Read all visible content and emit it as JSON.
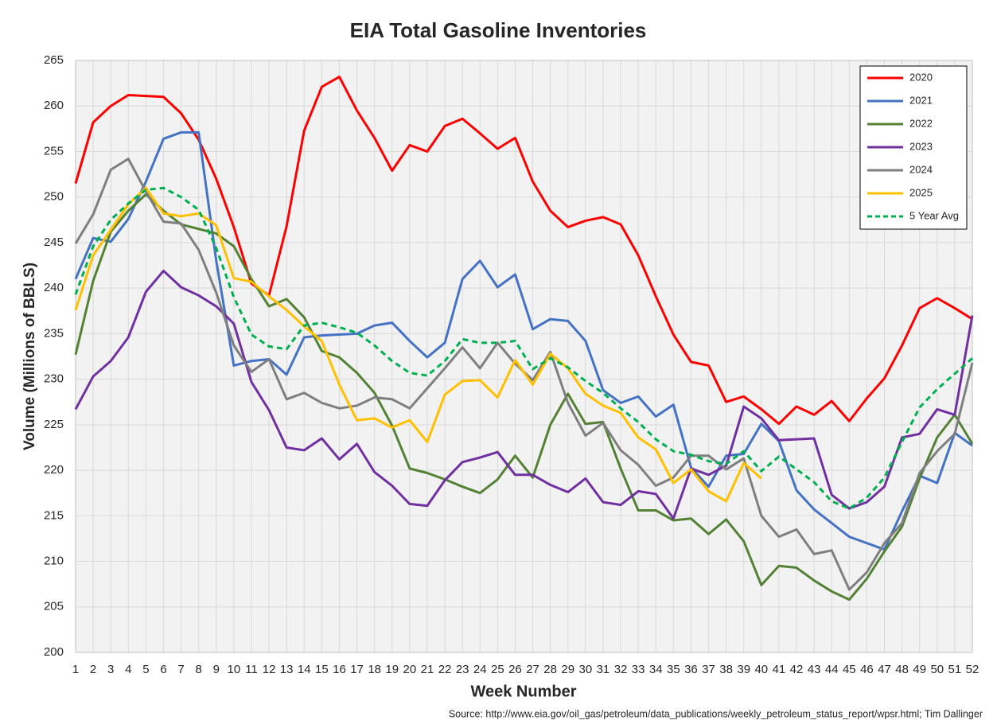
{
  "chart_data": {
    "type": "line",
    "title": "EIA Total Gasoline Inventories",
    "x_label": "Week Number",
    "y_label": "Volume (Millions of BBLS)",
    "source": "Source: http://www.eia.gov/oil_gas/petroleum/data_publications/weekly_petroleum_status_report/wpsr.html; Tim Dallinger",
    "x": [
      1,
      2,
      3,
      4,
      5,
      6,
      7,
      8,
      9,
      10,
      11,
      12,
      13,
      14,
      15,
      16,
      17,
      18,
      19,
      20,
      21,
      22,
      23,
      24,
      25,
      26,
      27,
      28,
      29,
      30,
      31,
      32,
      33,
      34,
      35,
      36,
      37,
      38,
      39,
      40,
      41,
      42,
      43,
      44,
      45,
      46,
      47,
      48,
      49,
      50,
      51,
      52
    ],
    "xlim": [
      1,
      52
    ],
    "xticks": [
      1,
      2,
      3,
      4,
      5,
      6,
      7,
      8,
      9,
      10,
      11,
      12,
      13,
      14,
      15,
      16,
      17,
      18,
      19,
      20,
      21,
      22,
      23,
      24,
      25,
      26,
      27,
      28,
      29,
      30,
      31,
      32,
      33,
      34,
      35,
      36,
      37,
      38,
      39,
      40,
      41,
      42,
      43,
      44,
      45,
      46,
      47,
      48,
      49,
      50,
      51,
      52
    ],
    "ylim": [
      200,
      265
    ],
    "yticks": [
      200,
      205,
      210,
      215,
      220,
      225,
      230,
      235,
      240,
      245,
      250,
      255,
      260,
      265
    ],
    "grid": true,
    "legend": "upper right",
    "series": [
      {
        "name": "2020",
        "color": "#ff0000",
        "dashed": false,
        "values": [
          251.5,
          258.2,
          260,
          261.2,
          261.1,
          261,
          259.2,
          256.3,
          252,
          246.7,
          240.5,
          239.2,
          246.8,
          257.3,
          262.1,
          263.2,
          259.5,
          256.5,
          252.9,
          255.7,
          255,
          257.8,
          258.6,
          257,
          255.3,
          256.5,
          251.7,
          248.5,
          246.7,
          247.4,
          247.8,
          247,
          243.6,
          239.1,
          234.9,
          231.9,
          231.5,
          227.5,
          228.1,
          226.7,
          225.1,
          227,
          226.1,
          227.6,
          225.4,
          227.9,
          230.1,
          233.7,
          237.8,
          238.9,
          237.8,
          236.6
        ]
      },
      {
        "name": "2021",
        "color": "#4472c4",
        "dashed": false,
        "values": [
          241,
          245.5,
          245.1,
          247.6,
          251.7,
          256.4,
          257.1,
          257.1,
          243,
          231.5,
          232,
          232.2,
          230.5,
          234.6,
          234.8,
          234.9,
          235,
          235.9,
          236.2,
          234.2,
          232.4,
          234,
          241,
          243,
          240.1,
          241.5,
          235.5,
          236.6,
          236.4,
          234.2,
          228.8,
          227.4,
          228.1,
          225.9,
          227.2,
          220.3,
          218.2,
          221.6,
          221.8,
          225.1,
          223.2,
          217.8,
          215.7,
          214.2,
          212.7,
          212,
          211.3,
          215.5,
          219.4,
          218.6,
          224.1,
          222.7
        ]
      },
      {
        "name": "2022",
        "color": "#548235",
        "dashed": false,
        "values": [
          232.7,
          240.8,
          246.2,
          248.5,
          250.3,
          248.5,
          247,
          246.5,
          246,
          244.6,
          241,
          238,
          238.8,
          236.8,
          233.1,
          232.4,
          230.7,
          228.5,
          224.9,
          220.2,
          219.7,
          219,
          218.2,
          217.5,
          219,
          221.6,
          219.2,
          225,
          228.4,
          225.1,
          225.3,
          220.2,
          215.6,
          215.6,
          214.5,
          214.7,
          213,
          214.6,
          212.2,
          207.4,
          209.5,
          209.3,
          207.9,
          206.7,
          205.8,
          208.1,
          211.1,
          213.8,
          219.1,
          223.6,
          226.1,
          222.9
        ]
      },
      {
        "name": "2023",
        "color": "#7030a0",
        "dashed": false,
        "values": [
          226.7,
          230.3,
          232,
          234.6,
          239.6,
          241.9,
          240.1,
          239.2,
          238,
          236.1,
          229.7,
          226.6,
          222.5,
          222.2,
          223.5,
          221.2,
          222.9,
          219.8,
          218.3,
          216.3,
          216.1,
          218.9,
          220.9,
          221.4,
          222,
          219.5,
          219.5,
          218.4,
          217.6,
          219.1,
          216.5,
          216.2,
          217.7,
          217.4,
          214.7,
          220.2,
          219.5,
          220.5,
          227,
          225.7,
          223.3,
          223.4,
          223.5,
          217.3,
          215.8,
          216.5,
          218.2,
          223.6,
          224,
          226.7,
          226.1,
          237
        ]
      },
      {
        "name": "2024",
        "color": "#7f7f7f",
        "dashed": false,
        "values": [
          244.9,
          248.1,
          253,
          254.2,
          250.6,
          247.3,
          247.1,
          244.2,
          239.5,
          233.7,
          230.8,
          232.2,
          227.8,
          228.5,
          227.4,
          226.8,
          227.1,
          228,
          227.8,
          226.8,
          229,
          231.2,
          233.5,
          231.2,
          234,
          231.7,
          229.9,
          233,
          227.4,
          223.8,
          225.2,
          222.2,
          220.6,
          218.3,
          219.2,
          221.6,
          221.6,
          220.1,
          221.3,
          215,
          212.7,
          213.5,
          210.8,
          211.2,
          206.9,
          208.8,
          212,
          214.2,
          219.7,
          222.1,
          224,
          231.8
        ]
      },
      {
        "name": "2025",
        "color": "#ffc000",
        "dashed": false,
        "values": [
          237.6,
          243.6,
          246.4,
          249.2,
          251,
          248.2,
          247.9,
          248.2,
          246.9,
          241.1,
          240.7,
          239.1,
          237.6,
          235.8,
          234.2,
          229.4,
          225.5,
          225.7,
          224.7,
          225.5,
          223.1,
          228.3,
          229.8,
          229.9,
          228,
          232.1,
          229.4,
          232.8,
          231.2,
          228.4,
          227.1,
          226.3,
          223.6,
          222.3,
          218.6,
          220.1,
          217.7,
          216.6,
          220.8,
          219.1,
          null,
          null,
          null,
          null,
          null,
          null,
          null,
          null,
          null,
          null,
          null,
          null
        ]
      },
      {
        "name": "5 Year Avg",
        "color": "#00b050",
        "dashed": true,
        "values": [
          239.3,
          244.6,
          247.5,
          249.3,
          250.8,
          251,
          250,
          248.6,
          244.4,
          239,
          234.9,
          233.6,
          233.3,
          235.9,
          236.2,
          235.7,
          235.1,
          233.7,
          232,
          230.7,
          230.4,
          232,
          234.4,
          234,
          234,
          234.2,
          231.1,
          232.3,
          231.3,
          229.8,
          228.5,
          226.8,
          225.3,
          223.4,
          222.1,
          221.7,
          221,
          220.7,
          222.1,
          219.9,
          221.5,
          220.1,
          218.7,
          216.6,
          215.8,
          217,
          219.2,
          223.1,
          226.9,
          228.9,
          230.6,
          232.3
        ]
      }
    ]
  }
}
